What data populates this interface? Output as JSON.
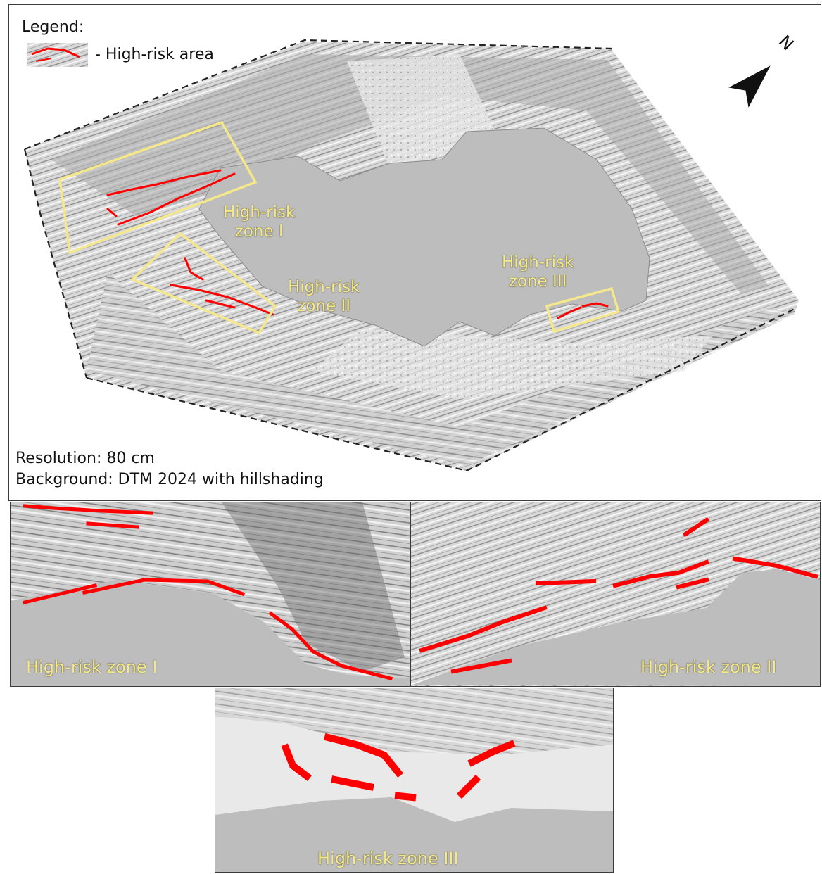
{
  "legend": {
    "title": "Legend:",
    "item_label": "- High-risk area"
  },
  "north_arrow": {
    "label": "N",
    "icon": "north-arrow-icon"
  },
  "zones": [
    {
      "id": "I",
      "label_line1": "High-risk",
      "label_line2": "zone I"
    },
    {
      "id": "II",
      "label_line1": "High-risk",
      "label_line2": "zone II"
    },
    {
      "id": "III",
      "label_line1": "High-risk",
      "label_line2": "zone III"
    }
  ],
  "footer": {
    "resolution": "Resolution: 80 cm",
    "background": "Background: DTM 2024 with hillshading"
  },
  "insets": [
    {
      "label": "High-risk zone I"
    },
    {
      "label": "High-risk zone II"
    },
    {
      "label": "High-risk zone III"
    }
  ],
  "colors": {
    "high_risk": "#ff0000",
    "zone_box": "#f4e88a",
    "pit_floor": "#bdbdbd",
    "terrain": "#d6d6d6"
  }
}
